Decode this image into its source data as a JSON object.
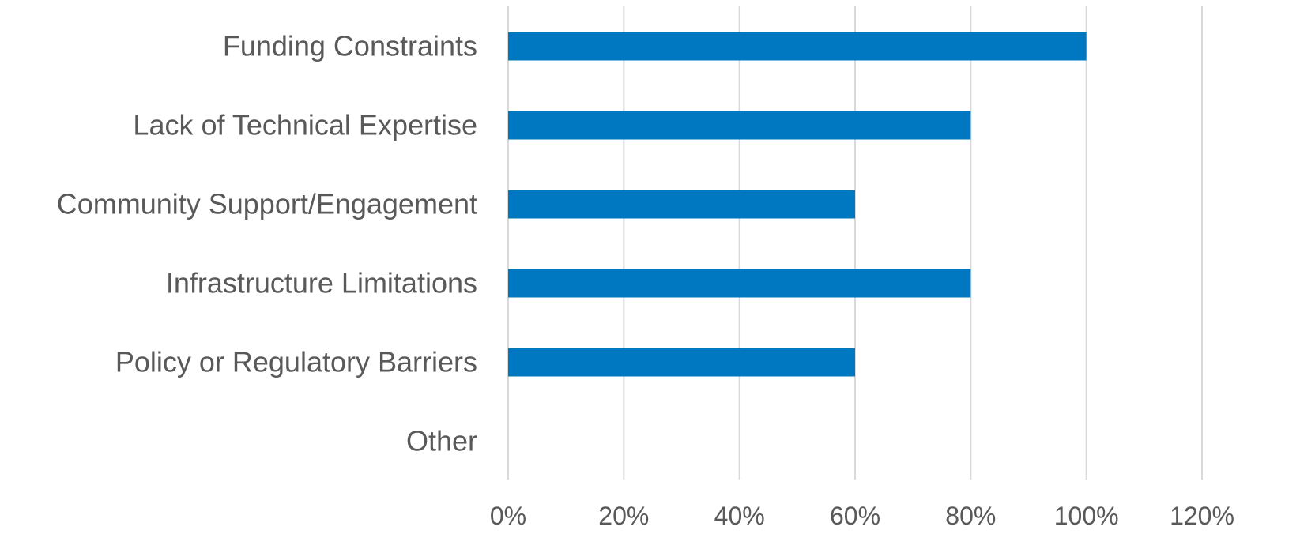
{
  "chart_data": {
    "type": "bar",
    "orientation": "horizontal",
    "categories": [
      "Funding Constraints",
      "Lack of Technical Expertise",
      "Community Support/Engagement",
      "Infrastructure Limitations",
      "Policy or Regulatory Barriers",
      "Other"
    ],
    "values": [
      1.0,
      0.8,
      0.6,
      0.8,
      0.6,
      0
    ],
    "xlim": [
      0,
      1.2
    ],
    "xticks": [
      "0%",
      "20%",
      "40%",
      "60%",
      "80%",
      "100%",
      "120%"
    ],
    "grid": true,
    "legend": "none",
    "bar_color": "#0078c1",
    "title": "",
    "xlabel": "",
    "ylabel": ""
  }
}
